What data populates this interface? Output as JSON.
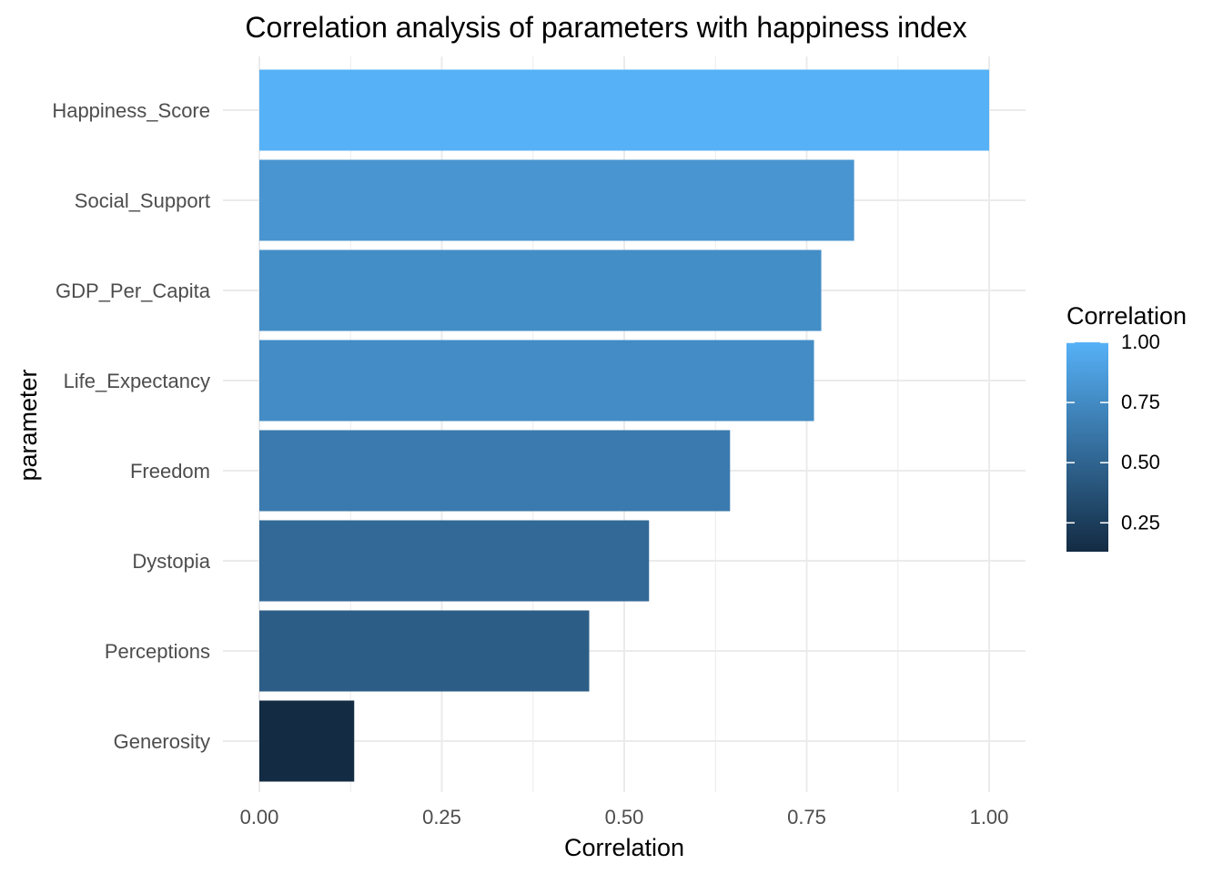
{
  "chart_data": {
    "type": "bar",
    "orientation": "horizontal",
    "title": "Correlation analysis of parameters with happiness index",
    "xlabel": "Correlation",
    "ylabel": "parameter",
    "categories": [
      "Happiness_Score",
      "Social_Support",
      "GDP_Per_Capita",
      "Life_Expectancy",
      "Freedom",
      "Dystopia",
      "Perceptions",
      "Generosity"
    ],
    "values": [
      1.0,
      0.815,
      0.77,
      0.76,
      0.645,
      0.534,
      0.452,
      0.13
    ],
    "xlim": [
      0,
      1.05
    ],
    "xticks": [
      "0.00",
      "0.25",
      "0.50",
      "0.75",
      "1.00"
    ],
    "xtick_values": [
      0,
      0.25,
      0.5,
      0.75,
      1.0
    ],
    "grid": true,
    "legend": {
      "title": "Correlation",
      "placement": "right",
      "type": "colorbar",
      "range": [
        0.13,
        1.0
      ],
      "labels": [
        "1.00",
        "0.75",
        "0.50",
        "0.25"
      ],
      "label_values": [
        1.0,
        0.75,
        0.5,
        0.25
      ],
      "color_low": "#132B43",
      "color_high": "#56B1F7"
    },
    "colors": {
      "grid": "#ebebeb",
      "tick_text": "#4d4d4d"
    }
  }
}
